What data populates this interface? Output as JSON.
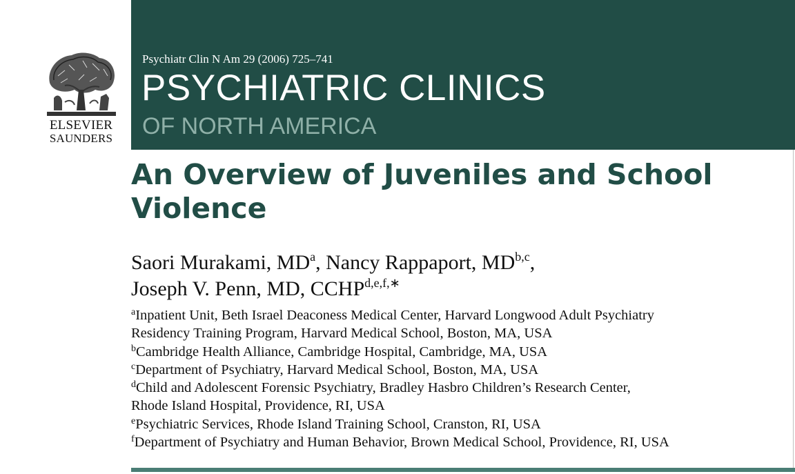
{
  "publisher": {
    "name": "ELSEVIER",
    "imprint": "SAUNDERS"
  },
  "journal": {
    "reference": "Psychiatr Clin N Am 29 (2006) 725–741",
    "title": "PSYCHIATRIC CLINICS",
    "subtitle": "OF NORTH AMERICA"
  },
  "article": {
    "title": "An Overview of Juveniles and School Violence"
  },
  "authors": [
    {
      "name": "Saori Murakami, MD",
      "sup": "a",
      "sep": ", "
    },
    {
      "name": "Nancy Rappaport, MD",
      "sup": "b,c",
      "sep": ","
    },
    {
      "name": "Joseph V. Penn, MD, CCHP",
      "sup": "d,e,f,",
      "sep": ""
    }
  ],
  "corresponding_mark": "∗",
  "affiliations": [
    {
      "sup": "a",
      "text": "Inpatient Unit, Beth Israel Deaconess Medical Center, Harvard Longwood Adult Psychiatry"
    },
    {
      "sup": "",
      "text": "Residency Training Program, Harvard Medical School, Boston, MA, USA"
    },
    {
      "sup": "b",
      "text": "Cambridge Health Alliance, Cambridge Hospital, Cambridge, MA, USA"
    },
    {
      "sup": "c",
      "text": "Department of Psychiatry, Harvard Medical School, Boston, MA, USA"
    },
    {
      "sup": "d",
      "text": "Child and Adolescent Forensic Psychiatry, Bradley Hasbro Children’s Research Center,"
    },
    {
      "sup": "",
      "text": "Rhode Island Hospital, Providence, RI, USA"
    },
    {
      "sup": "e",
      "text": "Psychiatric Services, Rhode Island Training School, Cranston, RI, USA"
    },
    {
      "sup": "f",
      "text": "Department of Psychiatry and Human Behavior, Brown Medical School, Providence, RI, USA"
    }
  ],
  "colors": {
    "banner": "#214d46",
    "title_text": "#214d46",
    "subtitle_text": "#8fb0a8",
    "bottom_rule": "#4a7d75"
  }
}
